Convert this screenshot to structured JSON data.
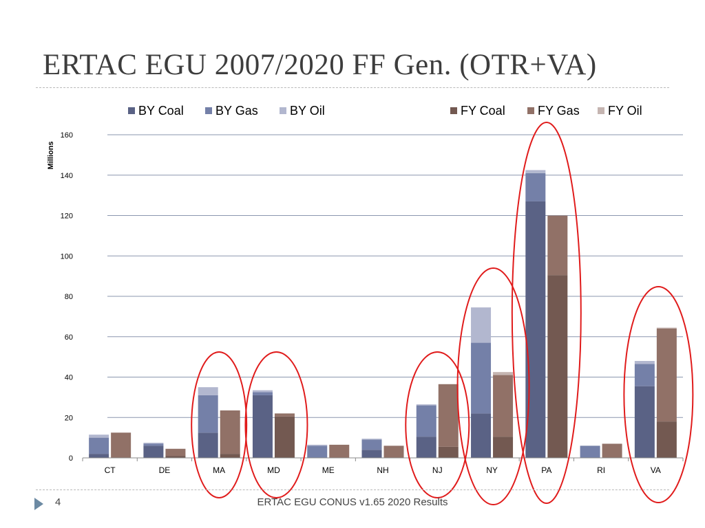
{
  "slide": {
    "title": "ERTAC EGU 2007/2020 FF Gen. (OTR+VA)",
    "page_number": "4",
    "footer": "ERTAC EGU CONUS v1.65 2020 Results"
  },
  "chart_data": {
    "type": "bar",
    "stacked": true,
    "ylabel": "Millions",
    "ylim": [
      0,
      160
    ],
    "yticks": [
      0,
      20,
      40,
      60,
      80,
      100,
      120,
      140,
      160
    ],
    "grid": true,
    "legend_position": "top",
    "categories": [
      "CT",
      "DE",
      "MA",
      "MD",
      "ME",
      "NH",
      "NJ",
      "NY",
      "PA",
      "RI",
      "VA"
    ],
    "groups": [
      {
        "name": "BY",
        "series": [
          {
            "name": "BY Coal",
            "color": "#5a6285",
            "values": [
              2,
              6,
              12.5,
              31,
              0,
              4,
              10.5,
              22,
              127,
              0,
              35.5
            ]
          },
          {
            "name": "BY Gas",
            "color": "#7480a8",
            "values": [
              8,
              1,
              18.5,
              1.5,
              6,
              5,
              15.5,
              35,
              14,
              6,
              11
            ]
          },
          {
            "name": "BY Oil",
            "color": "#b2b7cf",
            "values": [
              1.5,
              0.5,
              4,
              1,
              0.5,
              0.5,
              0.5,
              17.5,
              1.5,
              0,
              1.5
            ]
          }
        ]
      },
      {
        "name": "FY",
        "series": [
          {
            "name": "FY Coal",
            "color": "#735951",
            "values": [
              0,
              1,
              2,
              20.5,
              0,
              0,
              5.5,
              10.5,
              90.5,
              0,
              18
            ]
          },
          {
            "name": "FY Gas",
            "color": "#917167",
            "values": [
              12.5,
              3.5,
              21.5,
              1.5,
              6.5,
              6,
              31,
              30.5,
              29.5,
              7,
              46
            ]
          },
          {
            "name": "FY Oil",
            "color": "#c5b5b1",
            "values": [
              0,
              0,
              0,
              0,
              0,
              0,
              0,
              1.5,
              0,
              0,
              0.5
            ]
          }
        ]
      }
    ],
    "annotations": {
      "type": "ellipse",
      "color": "#e01b1b",
      "highlighted_categories": [
        "MA",
        "MD",
        "NJ",
        "NY",
        "PA",
        "VA"
      ]
    }
  }
}
